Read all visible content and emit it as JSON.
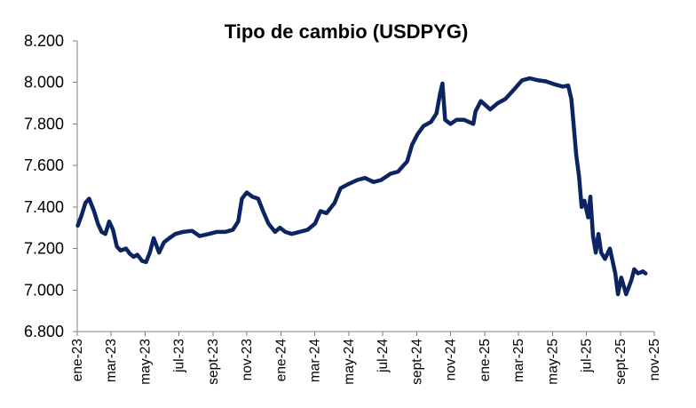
{
  "chart_data": {
    "type": "line",
    "title": "Tipo de cambio (USDPYG)",
    "xlabel": "",
    "ylabel": "",
    "ylim": [
      6800,
      8200
    ],
    "y_ticks": [
      "8.200",
      "8.000",
      "7.800",
      "7.600",
      "7.400",
      "7.200",
      "7.000",
      "6.800"
    ],
    "y_tick_values": [
      8200,
      8000,
      7800,
      7600,
      7400,
      7200,
      7000,
      6800
    ],
    "x_tick_labels": [
      "ene-23",
      "mar-23",
      "may-23",
      "jul-23",
      "sept-23",
      "nov-23",
      "ene-24",
      "mar-24",
      "may-24",
      "jul-24",
      "sept-24",
      "nov-24",
      "ene-25",
      "mar-25",
      "may-25",
      "jul-25",
      "sept-25",
      "nov-25"
    ],
    "grid": false,
    "legend": "none",
    "line_color": "#0c2461",
    "series": [
      {
        "x": [
          "2023-01-02",
          "2023-01-09",
          "2023-01-16",
          "2023-01-23",
          "2023-02-01",
          "2023-02-08",
          "2023-02-15",
          "2023-02-22",
          "2023-03-01",
          "2023-03-08",
          "2023-03-15",
          "2023-03-22",
          "2023-04-01",
          "2023-04-08",
          "2023-04-15",
          "2023-04-22",
          "2023-05-01",
          "2023-05-08",
          "2023-05-15",
          "2023-05-22",
          "2023-06-01",
          "2023-06-10",
          "2023-06-20",
          "2023-07-01",
          "2023-07-15",
          "2023-08-01",
          "2023-08-15",
          "2023-09-01",
          "2023-09-15",
          "2023-10-01",
          "2023-10-15",
          "2023-10-25",
          "2023-11-01",
          "2023-11-10",
          "2023-11-20",
          "2023-12-01",
          "2023-12-10",
          "2023-12-20",
          "2024-01-01",
          "2024-01-10",
          "2024-01-20",
          "2024-02-01",
          "2024-02-15",
          "2024-03-01",
          "2024-03-15",
          "2024-03-25",
          "2024-04-05",
          "2024-04-20",
          "2024-05-01",
          "2024-05-15",
          "2024-06-01",
          "2024-06-15",
          "2024-07-01",
          "2024-07-15",
          "2024-08-01",
          "2024-08-15",
          "2024-09-01",
          "2024-09-10",
          "2024-09-20",
          "2024-10-01",
          "2024-10-15",
          "2024-10-25",
          "2024-11-01",
          "2024-11-05",
          "2024-11-10",
          "2024-11-20",
          "2024-12-01",
          "2024-12-15",
          "2025-01-01",
          "2025-01-05",
          "2025-01-15",
          "2025-02-01",
          "2025-02-15",
          "2025-03-01",
          "2025-03-15",
          "2025-04-01",
          "2025-04-15",
          "2025-05-01",
          "2025-05-15",
          "2025-06-01",
          "2025-06-15",
          "2025-06-25",
          "2025-07-01",
          "2025-07-05",
          "2025-07-10",
          "2025-07-15",
          "2025-07-20",
          "2025-07-25",
          "2025-08-01",
          "2025-08-05",
          "2025-08-10",
          "2025-08-15",
          "2025-08-20",
          "2025-08-25",
          "2025-09-01",
          "2025-09-10",
          "2025-09-20",
          "2025-09-25",
          "2025-10-01",
          "2025-10-10",
          "2025-10-20",
          "2025-10-25",
          "2025-11-01",
          "2025-11-10",
          "2025-11-15"
        ],
        "y": [
          7310,
          7360,
          7420,
          7440,
          7380,
          7320,
          7280,
          7270,
          7330,
          7290,
          7210,
          7190,
          7200,
          7175,
          7160,
          7170,
          7140,
          7135,
          7180,
          7250,
          7180,
          7230,
          7250,
          7270,
          7280,
          7285,
          7260,
          7270,
          7280,
          7280,
          7290,
          7330,
          7440,
          7470,
          7450,
          7440,
          7380,
          7320,
          7280,
          7300,
          7280,
          7270,
          7280,
          7290,
          7320,
          7380,
          7370,
          7420,
          7490,
          7510,
          7530,
          7540,
          7520,
          7530,
          7560,
          7570,
          7620,
          7700,
          7750,
          7790,
          7810,
          7850,
          7950,
          7995,
          7820,
          7800,
          7820,
          7820,
          7800,
          7860,
          7910,
          7870,
          7900,
          7920,
          7960,
          8010,
          8020,
          8010,
          8005,
          7990,
          7980,
          7985,
          7920,
          7800,
          7650,
          7550,
          7400,
          7430,
          7350,
          7450,
          7260,
          7180,
          7270,
          7180,
          7150,
          7200,
          7080,
          6980,
          7060,
          6980,
          7050,
          7100,
          7080,
          7090,
          7080
        ]
      }
    ]
  }
}
